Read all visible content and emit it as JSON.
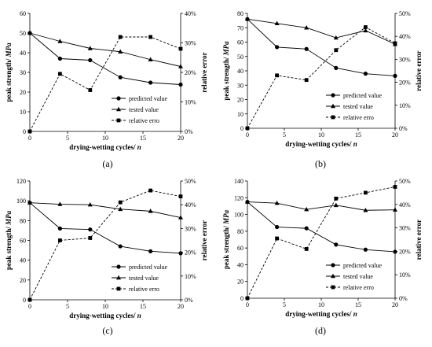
{
  "legend": {
    "predicted": "predicted value",
    "tested": "tested value",
    "error": "relative erro"
  },
  "chart_data": [
    {
      "id": "a",
      "type": "line",
      "caption": "(a)",
      "x": [
        0,
        4,
        8,
        12,
        16,
        20
      ],
      "xlim": [
        0,
        20
      ],
      "xticks": [
        "0",
        "5",
        "10",
        "15",
        "20"
      ],
      "xlabel_main": "drying-wetting cycles/ ",
      "xlabel_var": "n",
      "ylabel_main": "peak strength/ ",
      "ylabel_unit": "MPa",
      "y2label": "relative error",
      "ylim": [
        0,
        60
      ],
      "yticks": [
        "0",
        "10",
        "20",
        "30",
        "40",
        "50",
        "60"
      ],
      "y2lim": [
        0,
        40
      ],
      "y2ticks": [
        "0%",
        "10%",
        "20%",
        "30%",
        "40%"
      ],
      "series": [
        {
          "name": "predicted value",
          "axis": "left",
          "marker": "circle",
          "dashed": false,
          "values": [
            50,
            37,
            36.2,
            27.5,
            24.8,
            23.8
          ]
        },
        {
          "name": "tested value",
          "axis": "left",
          "marker": "triangle",
          "dashed": false,
          "values": [
            50,
            45.8,
            42.2,
            40.5,
            36.5,
            33
          ]
        },
        {
          "name": "relative erro",
          "axis": "right",
          "marker": "square",
          "dashed": true,
          "values": [
            0,
            19.5,
            14,
            32,
            32,
            28
          ]
        }
      ]
    },
    {
      "id": "b",
      "type": "line",
      "caption": "(b)",
      "x": [
        0,
        4,
        8,
        12,
        16,
        20
      ],
      "xlim": [
        0,
        20
      ],
      "xticks": [
        "0",
        "5",
        "10",
        "15",
        "20"
      ],
      "xlabel_main": "drying-wetting cycles/ ",
      "xlabel_var": "n",
      "ylabel_main": "peak strength/ ",
      "ylabel_unit": "MPa",
      "y2label": "relative error",
      "ylim": [
        0,
        80
      ],
      "yticks": [
        "0",
        "10",
        "20",
        "30",
        "40",
        "50",
        "60",
        "70",
        "80"
      ],
      "y2lim": [
        0,
        50
      ],
      "y2ticks": [
        "0%",
        "10%",
        "20%",
        "30%",
        "40%",
        "50%"
      ],
      "series": [
        {
          "name": "predicted value",
          "axis": "left",
          "marker": "circle",
          "dashed": false,
          "values": [
            76,
            56.5,
            55.2,
            42,
            38,
            36.5
          ]
        },
        {
          "name": "tested value",
          "axis": "left",
          "marker": "triangle",
          "dashed": false,
          "values": [
            76,
            73,
            70,
            63,
            68,
            58.5
          ]
        },
        {
          "name": "relative erro",
          "axis": "right",
          "marker": "square",
          "dashed": true,
          "values": [
            0,
            23,
            21,
            34,
            44,
            37
          ]
        }
      ]
    },
    {
      "id": "c",
      "type": "line",
      "caption": "(c)",
      "x": [
        0,
        4,
        8,
        12,
        16,
        20
      ],
      "xlim": [
        0,
        20
      ],
      "xticks": [
        "0",
        "5",
        "10",
        "15",
        "20"
      ],
      "xlabel_main": "drying-wetting cycles/ ",
      "xlabel_var": "n",
      "ylabel_main": "peak strength/ ",
      "ylabel_unit": "MPa",
      "y2label": "relative error",
      "ylim": [
        0,
        120
      ],
      "yticks": [
        "0",
        "20",
        "40",
        "60",
        "80",
        "100",
        "120"
      ],
      "y2lim": [
        0,
        50
      ],
      "y2ticks": [
        "0%",
        "10%",
        "20%",
        "30%",
        "40%",
        "50%"
      ],
      "series": [
        {
          "name": "predicted value",
          "axis": "left",
          "marker": "circle",
          "dashed": false,
          "values": [
            98,
            72,
            71,
            54,
            49,
            47
          ]
        },
        {
          "name": "tested value",
          "axis": "left",
          "marker": "triangle",
          "dashed": false,
          "values": [
            98,
            96.5,
            96,
            91.5,
            89.5,
            83
          ]
        },
        {
          "name": "relative erro",
          "axis": "right",
          "marker": "square",
          "dashed": true,
          "values": [
            0,
            25,
            26,
            41,
            46,
            43.5
          ]
        }
      ]
    },
    {
      "id": "d",
      "type": "line",
      "caption": "(d)",
      "x": [
        0,
        4,
        8,
        12,
        16,
        20
      ],
      "xlim": [
        0,
        20
      ],
      "xticks": [
        "0",
        "5",
        "10",
        "15",
        "20"
      ],
      "xlabel_main": "drying-wetting cycles/ ",
      "xlabel_var": "n",
      "ylabel_main": "peak strength/ ",
      "ylabel_unit": "MPa",
      "y2label": "relative error",
      "ylim": [
        0,
        140
      ],
      "yticks": [
        "0",
        "20",
        "40",
        "60",
        "80",
        "100",
        "120",
        "140"
      ],
      "y2lim": [
        0,
        50
      ],
      "y2ticks": [
        "0%",
        "10%",
        "20%",
        "30%",
        "40%",
        "50%"
      ],
      "series": [
        {
          "name": "predicted value",
          "axis": "left",
          "marker": "circle",
          "dashed": false,
          "values": [
            115,
            85,
            83.5,
            64,
            58,
            55.5
          ]
        },
        {
          "name": "tested value",
          "axis": "left",
          "marker": "triangle",
          "dashed": false,
          "values": [
            115,
            113.5,
            106,
            111,
            105,
            105.5
          ]
        },
        {
          "name": "relative erro",
          "axis": "right",
          "marker": "square",
          "dashed": true,
          "values": [
            0,
            25.5,
            21,
            42.5,
            45,
            47.5
          ]
        }
      ]
    }
  ]
}
